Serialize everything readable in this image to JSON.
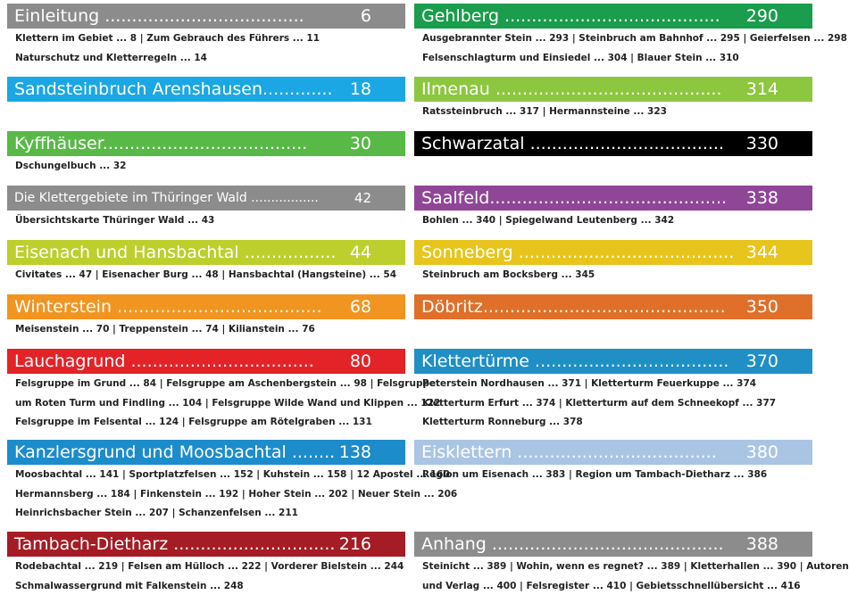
{
  "left_column": [
    {
      "title": "Einleitung .....................................",
      "page": "6",
      "color": "#8c8c8c",
      "lines": [
        "Klettern im Gebiet ... 8  |  Zum Gebrauch des Führers ... 11",
        "Naturschutz und Kletterregeln ... 14"
      ]
    },
    {
      "title": "Sandsteinbruch Arenshausen.............",
      "page": "18",
      "color": "#1ba7e3",
      "lines": []
    },
    {
      "title": "Kyffhäuser......................................",
      "page": "30",
      "color": "#58b947",
      "lines": [
        "Dschungelbuch ... 32"
      ]
    },
    {
      "title": "Die Klettergebiete im Thüringer Wald .................",
      "page": "42",
      "color": "#8c8c8c",
      "small": true,
      "lines": [
        "Übersichtskarte Thüringer Wald  ... 43"
      ]
    },
    {
      "title": "Eisenach und Hansbachtal .................",
      "page": "44",
      "color": "#bccf2d",
      "lines": [
        "Civitates ... 47  |  Eisenacher Burg ... 48  |  Hansbachtal (Hangsteine) ... 54"
      ]
    },
    {
      "title": "Winterstein ......................................",
      "page": "68",
      "color": "#f29420",
      "lines": [
        "Meisenstein ... 70  |  Treppenstein ... 74  |  Kilianstein ... 76"
      ]
    },
    {
      "title": "Lauchagrund ..................................",
      "page": "80",
      "color": "#e32327",
      "lines": [
        "Felsgruppe im Grund ... 84  |  Felsgruppe am Aschenbergstein ... 98  |  Felsgruppe",
        "um Roten Turm und Findling ... 104  |  Felsgruppe Wilde Wand und Klippen ... 122",
        "Felsgruppe im Felsental ... 124  |  Felsgruppe am Rötelgraben ... 131"
      ]
    },
    {
      "title": "Kanzlersgrund und Moosbachtal ........",
      "page": "138",
      "color": "#1d8ccb",
      "lines": [
        "Moosbachtal ... 141  |  Sportplatzfelsen ... 152  |  Kuhstein ... 158  |  12 Apostel ... 160",
        "Hermannsberg ... 184  |  Finkenstein ... 192  |  Hoher Stein ... 202  |  Neuer Stein ... 206",
        "Heinrichsbacher Stein ... 207  |  Schanzenfelsen ... 211"
      ]
    },
    {
      "title": "Tambach-Dietharz ..............................",
      "page": "216",
      "color": "#a51c24",
      "lines": [
        "Rodebachtal ... 219  |  Felsen am Hülloch ... 222  |  Vorderer Bielstein ... 244",
        "Schmalwassergrund mit Falkenstein ... 248"
      ]
    }
  ],
  "right_column": [
    {
      "title": "Gehlberg ........................................",
      "page": "290",
      "color": "#1a9d4c",
      "lines": [
        "Ausgebrannter Stein ... 293  |  Steinbruch am Bahnhof ... 295  |  Geierfelsen ... 298",
        "Felsenschlagturm und Einsiedel ... 304  |  Blauer Stein ... 310"
      ]
    },
    {
      "title": "Ilmenau ..........................................",
      "page": "314",
      "color": "#8dc63f",
      "lines": [
        "Ratssteinbruch ... 317  |  Hermannsteine ... 323"
      ]
    },
    {
      "title": "Schwarzatal ....................................",
      "page": "330",
      "color": "#000000",
      "lines": []
    },
    {
      "title": "Saalfeld............................................",
      "page": "338",
      "color": "#8f4697",
      "lines": [
        "Bohlen ... 340  |  Spiegelwand Leutenberg ... 342"
      ]
    },
    {
      "title": "Sonneberg ........................................",
      "page": "344",
      "color": "#e8c51c",
      "lines": [
        "Steinbruch am Bocksberg ... 345"
      ]
    },
    {
      "title": "Döbritz.............................................",
      "page": "350",
      "color": "#e06f2a",
      "lines": []
    },
    {
      "title": "Klettertürme ....................................",
      "page": "370",
      "color": "#1f8fc6",
      "lines": [
        "Peterstein Nordhausen ... 371  |  Kletterturm Feuerkuppe ... 374",
        "Kletterturm  Erfurt ... 374  |  Kletterturm auf dem Schneekopf ... 377",
        "Kletterturm Ronneburg ... 378"
      ]
    },
    {
      "title": "Eisklettern .....................................",
      "page": "380",
      "color": "#a9c5e3",
      "lines": [
        "Region um Eisenach ... 383  |  Region um Tambach-Dietharz ... 386"
      ]
    },
    {
      "title": "Anhang ...........................................",
      "page": "388",
      "color": "#8c8c8c",
      "lines": [
        "Steinicht ... 389  |  Wohin, wenn es regnet? ... 389  |  Kletterhallen ... 390  |  Autoren",
        "und Verlag ... 400  |  Felsregister ... 410  |  Gebietsschnellübersicht ... 416"
      ]
    }
  ]
}
